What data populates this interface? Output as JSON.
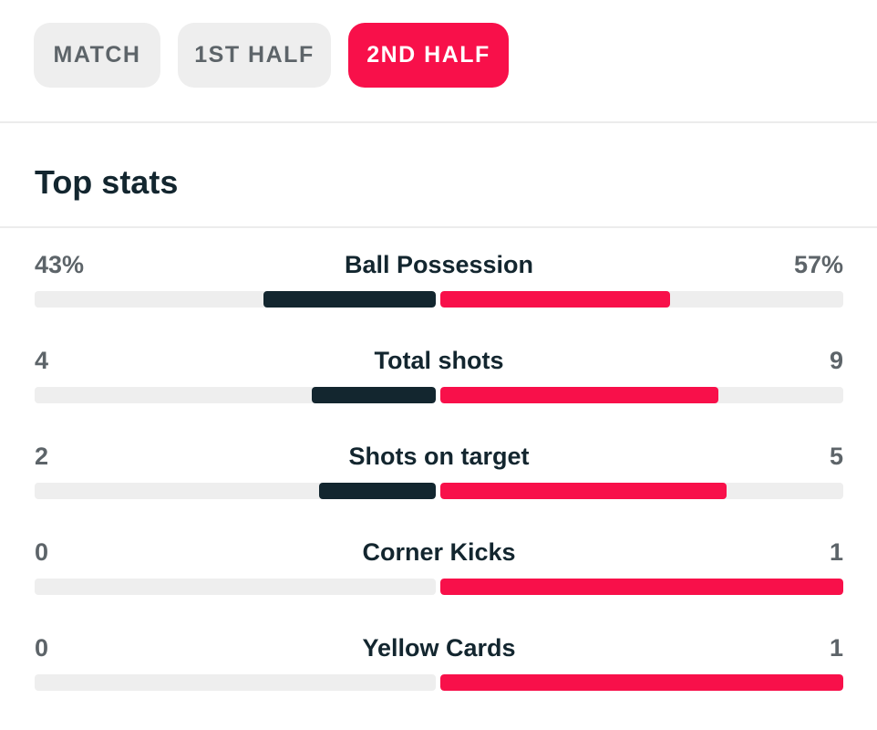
{
  "tabs": [
    {
      "label": "MATCH",
      "active": false
    },
    {
      "label": "1ST HALF",
      "active": false
    },
    {
      "label": "2ND HALF",
      "active": true
    }
  ],
  "section_title": "Top stats",
  "colors": {
    "accent": "#f8104a",
    "home_bar": "#13262f",
    "track": "#eeeeee"
  },
  "stats": [
    {
      "label": "Ball Possession",
      "home": "43%",
      "away": "57%",
      "home_share": 0.43,
      "away_share": 0.57
    },
    {
      "label": "Total shots",
      "home": "4",
      "away": "9",
      "home_share": 0.31,
      "away_share": 0.69
    },
    {
      "label": "Shots on target",
      "home": "2",
      "away": "5",
      "home_share": 0.29,
      "away_share": 0.71
    },
    {
      "label": "Corner Kicks",
      "home": "0",
      "away": "1",
      "home_share": 0.0,
      "away_share": 1.0
    },
    {
      "label": "Yellow Cards",
      "home": "0",
      "away": "1",
      "home_share": 0.0,
      "away_share": 1.0
    }
  ]
}
